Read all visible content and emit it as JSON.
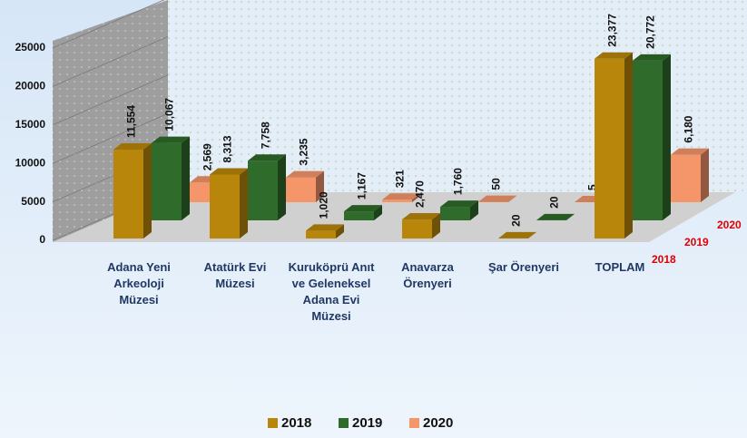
{
  "chart_data": {
    "type": "bar3d",
    "categories": [
      "Adana Yeni Arkeoloji Müzesi",
      "Atatürk Evi Müzesi",
      "Kuruköprü Anıt ve Geleneksel Adana Evi Müzesi",
      "Anavarza Örenyeri",
      "Şar Örenyeri",
      "TOPLAM"
    ],
    "series": [
      {
        "name": "2018",
        "color": "#b8860b",
        "values": [
          11554,
          8313,
          1020,
          2470,
          20,
          23377
        ],
        "value_labels": [
          "11,554",
          "8,313",
          "1,020",
          "2,470",
          "20",
          "23,377"
        ]
      },
      {
        "name": "2019",
        "color": "#2f6b2a",
        "values": [
          10067,
          7758,
          1167,
          1760,
          20,
          20772
        ],
        "value_labels": [
          "10,067",
          "7,758",
          "1,167",
          "1,760",
          "20",
          "20,772"
        ]
      },
      {
        "name": "2020",
        "color": "#f4956a",
        "values": [
          2569,
          3235,
          321,
          50,
          5,
          6180
        ],
        "value_labels": [
          "2,569",
          "3,235",
          "321",
          "50",
          "5",
          "6,180"
        ]
      }
    ],
    "ylim": [
      0,
      25000
    ],
    "yticks": [
      0,
      5000,
      10000,
      15000,
      20000,
      25000
    ],
    "grid": true,
    "legend": "bottom"
  }
}
